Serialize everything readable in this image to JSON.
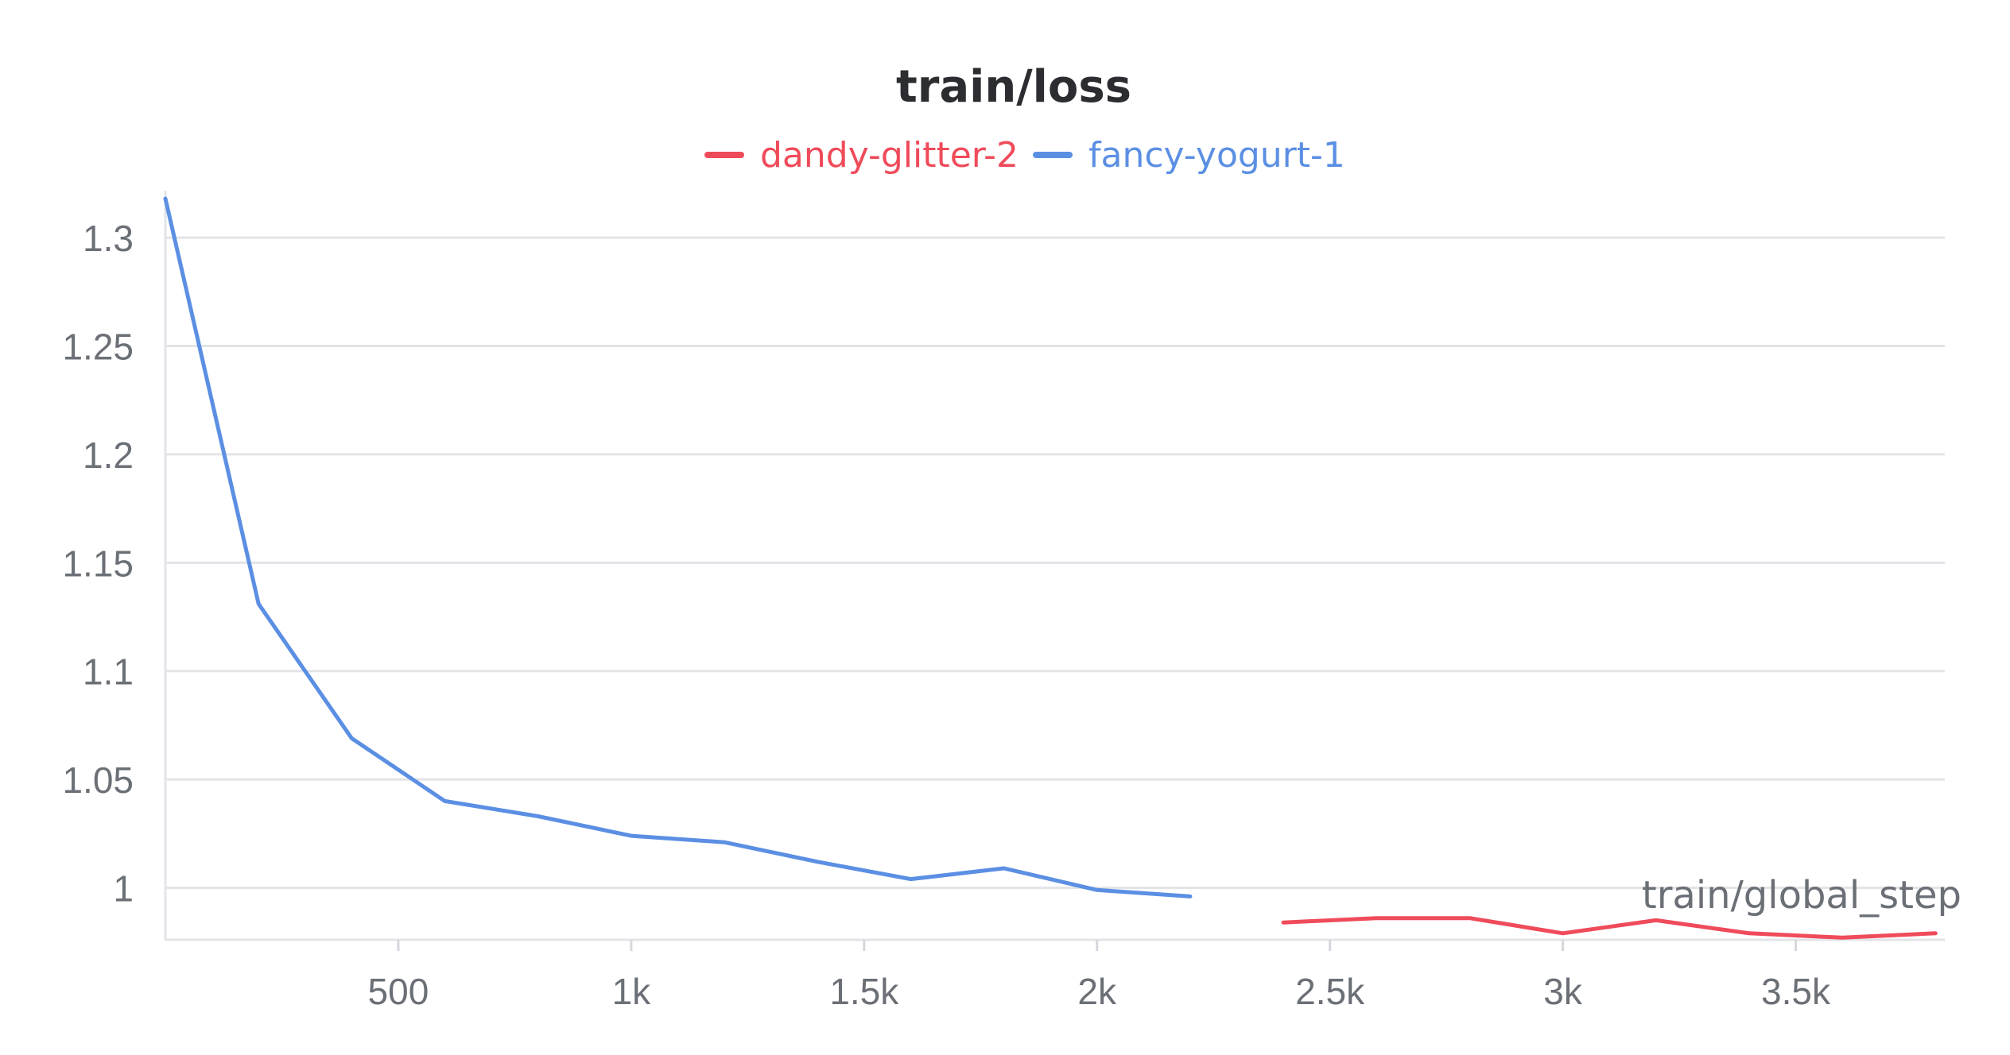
{
  "chart_data": {
    "type": "line",
    "title": "train/loss",
    "xlabel": "train/global_step",
    "ylabel": "",
    "xlim": [
      0,
      3820
    ],
    "ylim": [
      0.976,
      1.318
    ],
    "x_ticks": [
      500,
      1000,
      1500,
      2000,
      2500,
      3000,
      3500
    ],
    "x_tick_labels": [
      "500",
      "1k",
      "1.5k",
      "2k",
      "2.5k",
      "3k",
      "3.5k"
    ],
    "y_ticks": [
      1,
      1.05,
      1.1,
      1.15,
      1.2,
      1.25,
      1.3
    ],
    "y_tick_labels": [
      "1",
      "1.05",
      "1.1",
      "1.15",
      "1.2",
      "1.25",
      "1.3"
    ],
    "grid": true,
    "legend_position": "top-center",
    "series": [
      {
        "name": "dandy-glitter-2",
        "color": "#ef4b5a",
        "x": [
          2400,
          2600,
          2800,
          3000,
          3200,
          3400,
          3600,
          3800
        ],
        "y": [
          0.984,
          0.986,
          0.986,
          0.979,
          0.985,
          0.979,
          0.977,
          0.979
        ]
      },
      {
        "name": "fancy-yogurt-1",
        "color": "#5b8fe3",
        "x": [
          0,
          200,
          400,
          600,
          800,
          1000,
          1200,
          1400,
          1600,
          1800,
          2000,
          2200
        ],
        "y": [
          1.318,
          1.131,
          1.069,
          1.04,
          1.033,
          1.024,
          1.021,
          1.012,
          1.004,
          1.009,
          0.999,
          0.996
        ]
      }
    ]
  }
}
